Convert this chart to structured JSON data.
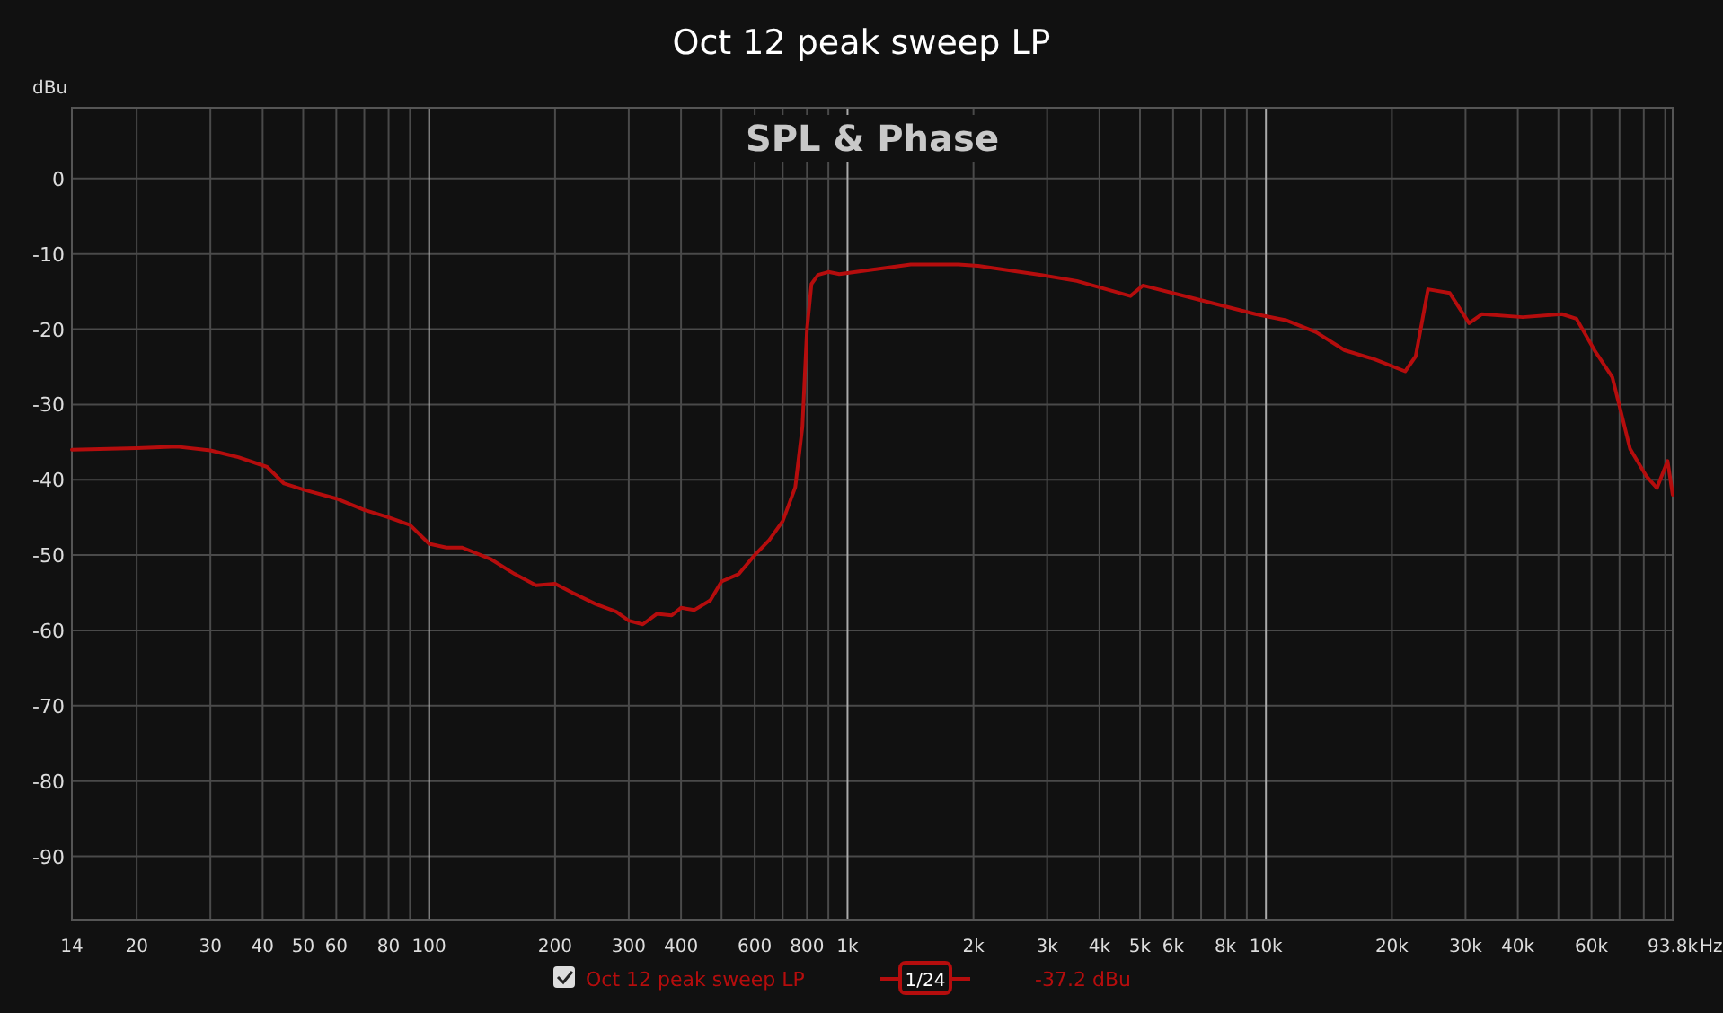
{
  "chart_data": {
    "type": "line",
    "title": "Oct 12 peak sweep LP",
    "subtitle": "SPL & Phase",
    "ylabel": "dBu",
    "log": "x",
    "grid": true,
    "legend": "bottom",
    "marker": "none",
    "line_style": "solid",
    "xlim": [
      14,
      93800
    ],
    "ylim": [
      -98.4,
      9.4
    ],
    "xticks": [
      14,
      20,
      30,
      40,
      50,
      60,
      {
        "value": 70,
        "label": null
      },
      80,
      {
        "value": 90,
        "label": null
      },
      100,
      200,
      300,
      400,
      {
        "value": 500,
        "label": null
      },
      600,
      {
        "value": 700,
        "label": null
      },
      800,
      {
        "value": 900,
        "label": null
      },
      {
        "value": 1000,
        "label": "1k"
      },
      {
        "value": 2000,
        "label": "2k"
      },
      {
        "value": 3000,
        "label": "3k"
      },
      {
        "value": 4000,
        "label": "4k"
      },
      {
        "value": 5000,
        "label": "5k"
      },
      {
        "value": 6000,
        "label": "6k"
      },
      {
        "value": 7000,
        "label": null
      },
      {
        "value": 8000,
        "label": "8k"
      },
      {
        "value": 9000,
        "label": null
      },
      {
        "value": 10000,
        "label": "10k"
      },
      {
        "value": 20000,
        "label": "20k"
      },
      {
        "value": 30000,
        "label": "30k"
      },
      {
        "value": 40000,
        "label": "40k"
      },
      {
        "value": 50000,
        "label": null
      },
      {
        "value": 60000,
        "label": "60k"
      },
      {
        "value": 70000,
        "label": null
      },
      {
        "value": 80000,
        "label": null
      },
      {
        "value": 90000,
        "label": null
      },
      {
        "value": 93800,
        "label": "93.8k"
      }
    ],
    "xlabel": "Hz",
    "yticks": [
      0,
      -10,
      -20,
      -30,
      -40,
      -50,
      -60,
      -70,
      -80,
      -90
    ],
    "annotations": [
      "1/24",
      "-37.2 dBu"
    ],
    "series": [
      {
        "name": "Oct 12 peak sweep LP",
        "color": "#b50d0d",
        "x": [
          14,
          20,
          25,
          30,
          35,
          41,
          45,
          50,
          60,
          70,
          80,
          90,
          100,
          110,
          120,
          140,
          160,
          180,
          200,
          220,
          250,
          280,
          300,
          324,
          350,
          380,
          400,
          430,
          470,
          500,
          550,
          600,
          650,
          700,
          750,
          780,
          800,
          820,
          850,
          900,
          956,
          1416,
          1841,
          2051,
          2905,
          3532,
          4744,
          5080,
          6823,
          9440,
          11150,
          13180,
          15420,
          18200,
          21520,
          22800,
          24400,
          27500,
          30600,
          32800,
          41100,
          51000,
          55200,
          61000,
          67300,
          74200,
          81100,
          86000,
          91200,
          93800
        ],
        "values": [
          -36,
          -35.8,
          -35.6,
          -36.1,
          -37,
          -38.3,
          -40.5,
          -41.3,
          -42.5,
          -44,
          -45,
          -46,
          -48.5,
          -49,
          -49,
          -50.5,
          -52.5,
          -54,
          -53.8,
          -55,
          -56.5,
          -57.5,
          -58.7,
          -59.2,
          -57.8,
          -58,
          -57,
          -57.3,
          -56,
          -53.5,
          -52.5,
          -50,
          -48,
          -45.5,
          -41,
          -33,
          -20,
          -14,
          -12.8,
          -12.4,
          -12.7,
          -11.4,
          -11.4,
          -11.6,
          -12.8,
          -13.6,
          -15.6,
          -14.2,
          -16,
          -18,
          -18.8,
          -20.4,
          -22.8,
          -24,
          -25.6,
          -23.6,
          -14.7,
          -15.2,
          -19.2,
          -18,
          -18.4,
          -18,
          -18.6,
          -22.8,
          -26.4,
          -35.9,
          -39.5,
          -41.1,
          -37.5,
          -42
        ]
      }
    ]
  }
}
